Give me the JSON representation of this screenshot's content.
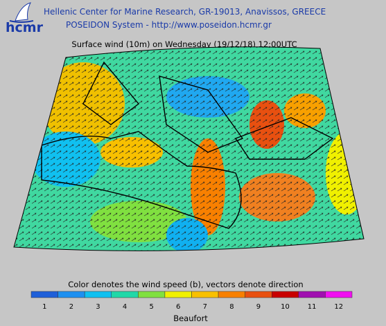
{
  "header": {
    "logo": "hcmr",
    "line1": "Hellenic Center for Marine Research, GR-19013, Anavissos, GREECE",
    "line2": "POSEIDON System - http://www.poseidon.hcmr.gr"
  },
  "title": "Surface wind (10m) on Wednesday (19/12/18) 12:00UTC",
  "legend": {
    "caption": "Color denotes the wind speed (b), vectors denote direction",
    "unit": "Beaufort",
    "items": [
      {
        "label": 1,
        "color": "#1f5fd8"
      },
      {
        "label": 2,
        "color": "#1e90f0"
      },
      {
        "label": 3,
        "color": "#10c0f0"
      },
      {
        "label": 4,
        "color": "#20d8a8"
      },
      {
        "label": 5,
        "color": "#80e040"
      },
      {
        "label": 6,
        "color": "#f0f000"
      },
      {
        "label": 7,
        "color": "#f8c000"
      },
      {
        "label": 8,
        "color": "#f88000"
      },
      {
        "label": 9,
        "color": "#e85010"
      },
      {
        "label": 10,
        "color": "#c80000"
      },
      {
        "label": 11,
        "color": "#a010b0"
      },
      {
        "label": 12,
        "color": "#f010f0"
      }
    ]
  }
}
